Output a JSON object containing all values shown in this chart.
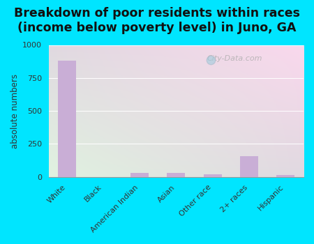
{
  "title": "Breakdown of poor residents within races\n(income below poverty level) in Juno, GA",
  "categories": [
    "White",
    "Black",
    "American Indian",
    "Asian",
    "Other race",
    "2+ races",
    "Hispanic"
  ],
  "values": [
    880,
    0,
    30,
    30,
    18,
    155,
    15
  ],
  "bar_color": "#c9aed6",
  "ylabel": "absolute numbers",
  "ylim": [
    0,
    1000
  ],
  "yticks": [
    0,
    250,
    500,
    750,
    1000
  ],
  "background_color": "#00e5ff",
  "title_fontsize": 12.5,
  "axis_label_fontsize": 8.5,
  "tick_fontsize": 8.0,
  "watermark": "City-Data.com"
}
